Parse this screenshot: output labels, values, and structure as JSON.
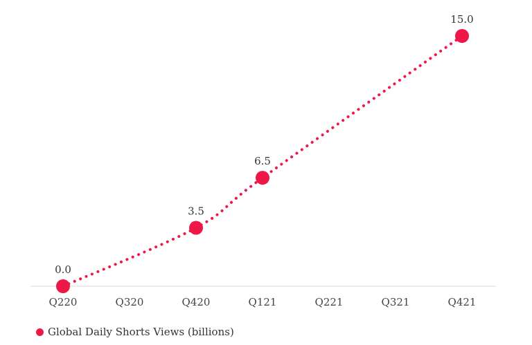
{
  "chart_data": {
    "type": "line",
    "categories": [
      "Q220",
      "Q320",
      "Q420",
      "Q121",
      "Q221",
      "Q321",
      "Q421"
    ],
    "series": [
      {
        "name": "Global Daily Shorts Views (billions)",
        "points": [
          {
            "category": "Q220",
            "value": 0.0,
            "label": "0.0"
          },
          {
            "category": "Q420",
            "value": 3.5,
            "label": "3.5"
          },
          {
            "category": "Q121",
            "value": 6.5,
            "label": "6.5"
          },
          {
            "category": "Q421",
            "value": 15.0,
            "label": "15.0"
          }
        ]
      }
    ],
    "ylim": [
      0,
      15
    ],
    "grid": false,
    "line_style": "dotted",
    "legend_position": "bottom-left",
    "colors": {
      "series": "#ee1747",
      "axis": "#d9d9d9"
    }
  }
}
